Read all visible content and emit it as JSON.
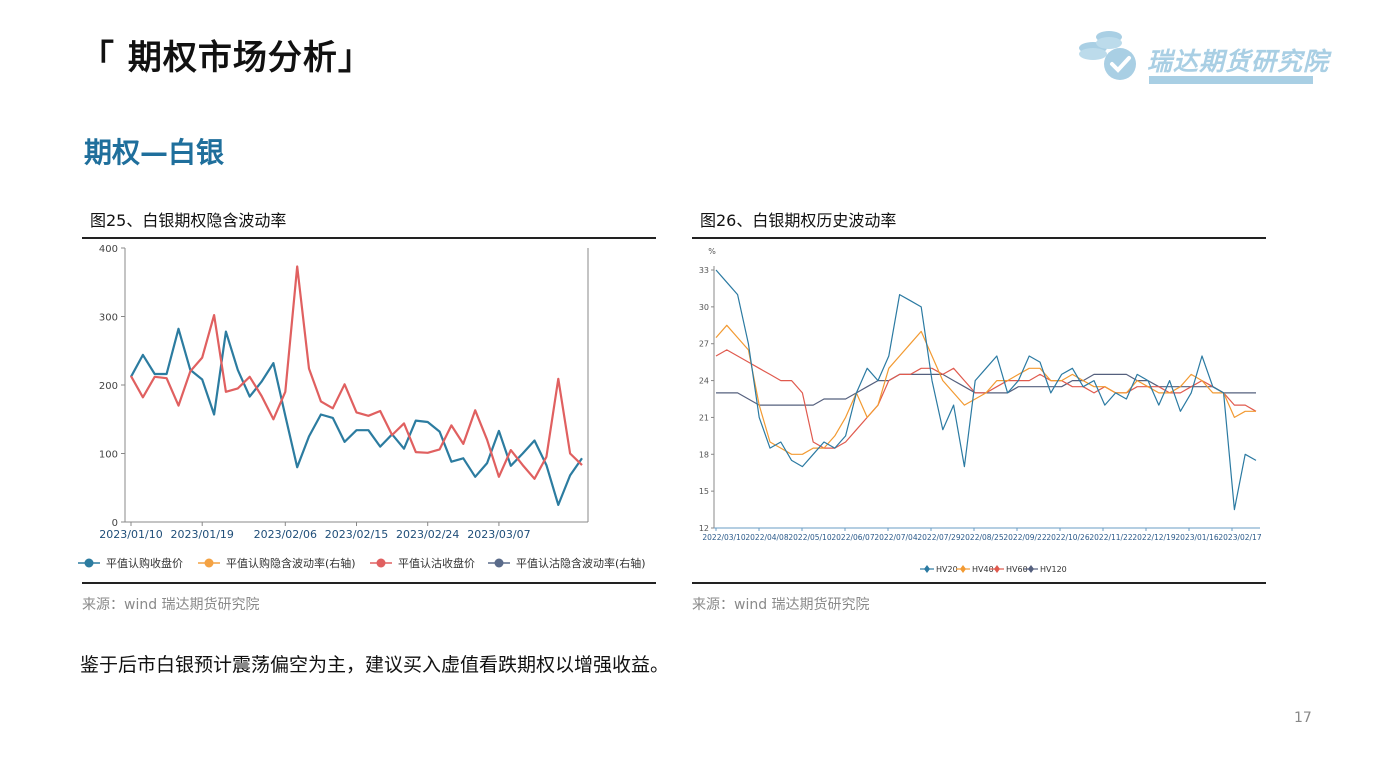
{
  "page": {
    "title": "「 期权市场分析」",
    "logo_text": "瑞达期货研究院",
    "section_title": "期权—白银",
    "conclusion": "鉴于后市白银预计震荡偏空为主，建议买入虚值看跌期权以增强收益。",
    "page_number": "17"
  },
  "colors": {
    "section": "#1f6f9c",
    "logo": "#a9cfe4",
    "call_close": "#2c7ca0",
    "call_iv": "#f4a243",
    "put_close": "#e06060",
    "put_iv": "#5a6b8a",
    "hv20": "#2b7aa2",
    "hv40": "#f29a32",
    "hv60": "#e05a4e",
    "hv120": "#55607e"
  },
  "figures": {
    "left": {
      "title": "图25、白银期权隐含波动率",
      "source": "来源：wind   瑞达期货研究院"
    },
    "right": {
      "title": "图26、白银期权历史波动率",
      "source": "来源：wind   瑞达期货研究院"
    }
  },
  "chart_data": [
    {
      "type": "line",
      "title": "图25、白银期权隐含波动率",
      "ylim": [
        0,
        400
      ],
      "yticks": [
        "0",
        "100",
        "200",
        "300",
        "400"
      ],
      "xtick_labels": [
        "2023/01/10",
        "2023/01/19",
        "2023/02/06",
        "2023/02/15",
        "2023/02/24",
        "2023/03/07"
      ],
      "legend_position": "bottom",
      "series": [
        {
          "name": "平值认购收盘价",
          "values": [
            212,
            244,
            216,
            216,
            282,
            222,
            208,
            157,
            278,
            222,
            183,
            205,
            232,
            155,
            80,
            125,
            157,
            152,
            117,
            134,
            134,
            110,
            128,
            107,
            148,
            146,
            132,
            88,
            93,
            66,
            86,
            133,
            82,
            100,
            119,
            83,
            25,
            68,
            93
          ]
        },
        {
          "name": "平值认购隐含波动率(右轴)",
          "values": []
        },
        {
          "name": "平值认沽收盘价",
          "values": [
            213,
            182,
            212,
            210,
            170,
            220,
            240,
            302,
            190,
            195,
            212,
            184,
            150,
            190,
            373,
            224,
            176,
            166,
            201,
            160,
            155,
            162,
            127,
            144,
            102,
            101,
            106,
            141,
            114,
            163,
            120,
            66,
            105,
            83,
            63,
            95,
            209,
            100,
            83
          ]
        },
        {
          "name": "平值认沽隐含波动率(右轴)",
          "values": []
        }
      ]
    },
    {
      "type": "line",
      "title": "图26、白银期权历史波动率",
      "ylabel": "%",
      "ylim": [
        12,
        33
      ],
      "yticks": [
        "12",
        "15",
        "18",
        "21",
        "24",
        "27",
        "30",
        "33"
      ],
      "xtick_labels": [
        "2022/03/10",
        "2022/04/08",
        "2022/05/10",
        "2022/06/07",
        "2022/07/04",
        "2022/07/29",
        "2022/08/25",
        "2022/09/22",
        "2022/10/26",
        "2022/11/22",
        "2022/12/19",
        "2023/01/16",
        "2023/02/17"
      ],
      "legend_position": "bottom",
      "series": [
        {
          "name": "HV20",
          "values": [
            33,
            32,
            31,
            27,
            21,
            18.5,
            19,
            17.5,
            17,
            18,
            19,
            18.5,
            19.5,
            23,
            25,
            24,
            26,
            31,
            30.5,
            30,
            24,
            20,
            22,
            17,
            24,
            25,
            26,
            23,
            24,
            26,
            25.5,
            23,
            24.5,
            25,
            23.5,
            24,
            22,
            23,
            22.5,
            24.5,
            24,
            22,
            24,
            21.5,
            23,
            26,
            23.5,
            23,
            13.5,
            18,
            17.5
          ]
        },
        {
          "name": "HV40",
          "values": [
            27.5,
            28.5,
            27.5,
            26.5,
            22,
            19,
            18.5,
            18,
            18,
            18.5,
            18.5,
            19.5,
            21,
            23,
            21,
            22,
            25,
            26,
            27,
            28,
            26,
            24,
            23,
            22,
            22.5,
            23,
            24,
            24,
            24.5,
            25,
            25,
            24,
            24,
            24.5,
            24,
            23.5,
            23.5,
            23,
            23,
            24,
            23.5,
            23,
            23,
            23.5,
            24.5,
            24,
            23,
            23,
            21,
            21.5,
            21.5
          ]
        },
        {
          "name": "HV60",
          "values": [
            26,
            26.5,
            26,
            25.5,
            25,
            24.5,
            24,
            24,
            23,
            19,
            18.5,
            18.5,
            19,
            20,
            21,
            22,
            24,
            24.5,
            24.5,
            25,
            25,
            24.5,
            25,
            24,
            23,
            23,
            23.5,
            24,
            24,
            24,
            24.5,
            24,
            24,
            23.5,
            23.5,
            23,
            23.5,
            23,
            23,
            23.5,
            23.5,
            23.5,
            23,
            23,
            23.5,
            24,
            23.5,
            23,
            22,
            22,
            21.5
          ]
        },
        {
          "name": "HV120",
          "values": [
            23,
            23,
            23,
            22.5,
            22,
            22,
            22,
            22,
            22,
            22,
            22.5,
            22.5,
            22.5,
            23,
            23.5,
            24,
            24,
            24.5,
            24.5,
            24.5,
            24.5,
            24.5,
            24,
            23.5,
            23,
            23,
            23,
            23,
            23.5,
            23.5,
            23.5,
            23.5,
            23.5,
            24,
            24,
            24.5,
            24.5,
            24.5,
            24.5,
            24,
            24,
            23.5,
            23.5,
            23.5,
            23.5,
            23.5,
            23.5,
            23,
            23,
            23,
            23
          ]
        }
      ]
    }
  ]
}
